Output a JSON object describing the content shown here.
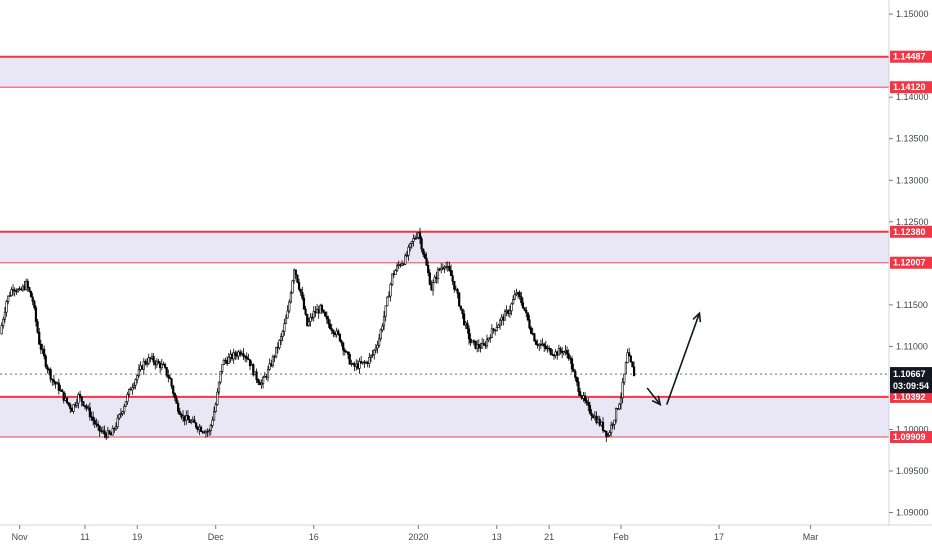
{
  "chart_data": {
    "type": "candlestick",
    "instrument_note": "",
    "y_ticks": [
      "1.15000",
      "1.14000",
      "1.13500",
      "1.13000",
      "1.12500",
      "1.11500",
      "1.11000",
      "1.10000",
      "1.09500",
      "1.09000"
    ],
    "y_tick_values": [
      1.15,
      1.14,
      1.135,
      1.13,
      1.125,
      1.115,
      1.11,
      1.1,
      1.095,
      1.09
    ],
    "ylim": [
      1.0885,
      1.1517
    ],
    "x_ticks": [
      "Nov",
      "11",
      "19",
      "Dec",
      "16",
      "2020",
      "13",
      "21",
      "Feb",
      "17",
      "Mar"
    ],
    "x_tick_days": [
      0,
      10,
      18,
      30,
      45,
      61,
      73,
      81,
      92,
      107,
      121
    ],
    "xlim_days": [
      -3,
      133
    ],
    "x_start_label": "Nov",
    "zones": [
      {
        "top": 1.14487,
        "bottom": 1.1412,
        "top_label": "1.14487",
        "bottom_label": "1.14120",
        "fill": "#e9e6f6"
      },
      {
        "top": 1.1238,
        "bottom": 1.12007,
        "top_label": "1.12380",
        "bottom_label": "1.12007",
        "fill": "#e9e6f6"
      },
      {
        "top": 1.10392,
        "bottom": 1.09909,
        "top_label": "1.10392",
        "bottom_label": "1.09909",
        "fill": "#e9e6f6"
      }
    ],
    "current_price": {
      "value": 1.10667,
      "label": "1.10667",
      "countdown": "03:09:54"
    },
    "price_path": [
      [
        -3,
        1.1115
      ],
      [
        -2,
        1.1155
      ],
      [
        -1,
        1.1172
      ],
      [
        0,
        1.1165
      ],
      [
        1,
        1.1175
      ],
      [
        2,
        1.1155
      ],
      [
        3,
        1.1105
      ],
      [
        4,
        1.108
      ],
      [
        5,
        1.106
      ],
      [
        6,
        1.105
      ],
      [
        7,
        1.1035
      ],
      [
        8,
        1.1025
      ],
      [
        9,
        1.104
      ],
      [
        10,
        1.103
      ],
      [
        11,
        1.1015
      ],
      [
        12,
        1.1
      ],
      [
        13,
        1.0995
      ],
      [
        14,
        1.0993
      ],
      [
        15,
        1.101
      ],
      [
        16,
        1.103
      ],
      [
        17,
        1.105
      ],
      [
        18,
        1.1065
      ],
      [
        19,
        1.108
      ],
      [
        20,
        1.1085
      ],
      [
        21,
        1.108
      ],
      [
        22,
        1.1075
      ],
      [
        23,
        1.106
      ],
      [
        24,
        1.103
      ],
      [
        25,
        1.1015
      ],
      [
        26,
        1.101
      ],
      [
        27,
        1.1005
      ],
      [
        28,
        1.1
      ],
      [
        29,
        1.0997
      ],
      [
        30,
        1.103
      ],
      [
        31,
        1.108
      ],
      [
        32,
        1.1085
      ],
      [
        33,
        1.109
      ],
      [
        34,
        1.1095
      ],
      [
        35,
        1.1085
      ],
      [
        36,
        1.1065
      ],
      [
        37,
        1.1055
      ],
      [
        38,
        1.107
      ],
      [
        39,
        1.109
      ],
      [
        40,
        1.111
      ],
      [
        41,
        1.114
      ],
      [
        42,
        1.1195
      ],
      [
        43,
        1.1165
      ],
      [
        44,
        1.1125
      ],
      [
        45,
        1.114
      ],
      [
        46,
        1.1145
      ],
      [
        47,
        1.113
      ],
      [
        48,
        1.112
      ],
      [
        49,
        1.111
      ],
      [
        50,
        1.109
      ],
      [
        51,
        1.1075
      ],
      [
        52,
        1.1078
      ],
      [
        53,
        1.108
      ],
      [
        54,
        1.109
      ],
      [
        55,
        1.111
      ],
      [
        56,
        1.1145
      ],
      [
        57,
        1.1185
      ],
      [
        58,
        1.1198
      ],
      [
        59,
        1.1205
      ],
      [
        60,
        1.1225
      ],
      [
        61,
        1.1238
      ],
      [
        62,
        1.1205
      ],
      [
        63,
        1.117
      ],
      [
        64,
        1.119
      ],
      [
        65,
        1.12
      ],
      [
        66,
        1.1185
      ],
      [
        67,
        1.116
      ],
      [
        68,
        1.113
      ],
      [
        69,
        1.1105
      ],
      [
        70,
        1.11
      ],
      [
        71,
        1.11
      ],
      [
        72,
        1.1115
      ],
      [
        73,
        1.1125
      ],
      [
        74,
        1.1135
      ],
      [
        75,
        1.1145
      ],
      [
        76,
        1.1165
      ],
      [
        77,
        1.115
      ],
      [
        78,
        1.1125
      ],
      [
        79,
        1.1105
      ],
      [
        80,
        1.11
      ],
      [
        81,
        1.1095
      ],
      [
        82,
        1.1092
      ],
      [
        83,
        1.1095
      ],
      [
        84,
        1.109
      ],
      [
        85,
        1.106
      ],
      [
        86,
        1.104
      ],
      [
        87,
        1.1025
      ],
      [
        88,
        1.1015
      ],
      [
        89,
        1.1005
      ],
      [
        90,
        1.0993
      ],
      [
        91,
        1.1015
      ],
      [
        92,
        1.104
      ],
      [
        93,
        1.109
      ],
      [
        94,
        1.1067
      ]
    ],
    "projection_arrows": [
      {
        "from": [
          96,
          1.105
        ],
        "to": [
          98,
          1.103
        ]
      },
      {
        "from": [
          99,
          1.103
        ],
        "to": [
          104,
          1.114
        ]
      }
    ],
    "colors": {
      "resistance_line": "#f23645",
      "zone_fill": "#e9e6f6",
      "candle": "#000000",
      "arrow": "#131722",
      "badge_bg": "#f23645",
      "price_badge_bg": "#131722"
    }
  }
}
